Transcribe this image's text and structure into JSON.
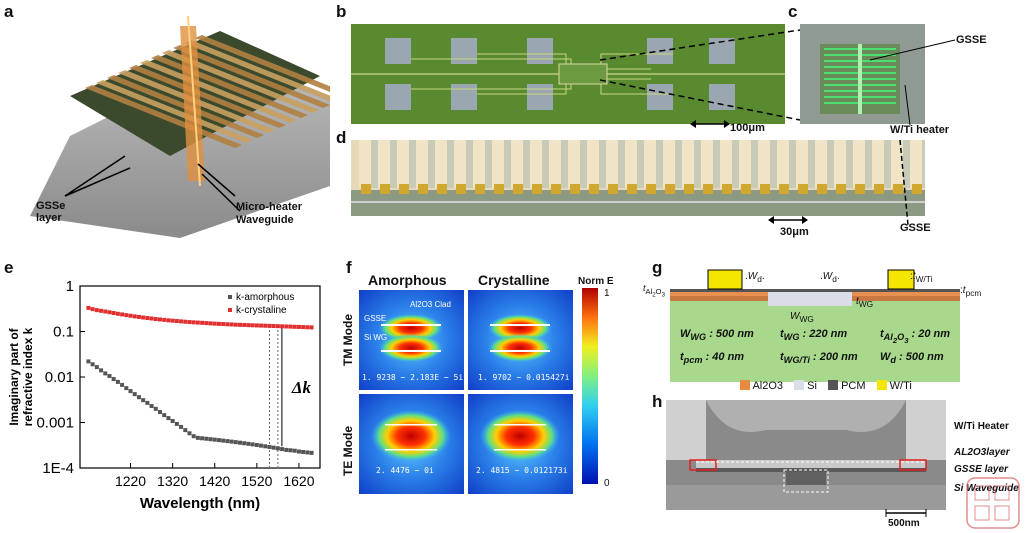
{
  "panels": {
    "a": {
      "letter": "a",
      "gsse_label": "GSSe\nlayer",
      "heater_label": "Micro-heater",
      "waveguide_label": "Waveguide"
    },
    "b": {
      "letter": "b",
      "scale": "100μm"
    },
    "c": {
      "letter": "c",
      "gsse": "GSSE",
      "heater": "W/Ti heater"
    },
    "d": {
      "letter": "d",
      "scale": "30μm",
      "gsse": "GSSE"
    },
    "e": {
      "letter": "e"
    },
    "f": {
      "letter": "f",
      "col_amorphous": "Amorphous",
      "col_crystalline": "Crystalline",
      "row_tm": "TM Mode",
      "row_te": "TE Mode",
      "clad_label": "Al2O3 Clad",
      "gsse_label": "GSSE",
      "si_label": "Si WG",
      "cb_title": "Norm E",
      "cb_max": "1",
      "cb_min": "0",
      "neff": {
        "tm_am": "1. 9238 − 2.183E − 5i",
        "tm_cr": "1. 9702 − 0.015427i",
        "te_am": "2. 4476 − 0i",
        "te_cr": "2. 4815 − 0.012173i"
      }
    },
    "g": {
      "letter": "g",
      "params": [
        [
          "W<sub>WG</sub> : 500 nm",
          "t<sub>WG</sub> : 220 nm",
          "t<sub>Al<sub>2</sub>O<sub>3</sub></sub> : 20 nm"
        ],
        [
          "t<sub>pcm</sub> : 40 nm",
          "t<sub>WG/Ti</sub> : 200 nm",
          "W<sub>d</sub> : 500 nm"
        ]
      ]
    },
    "h": {
      "letter": "h",
      "legend": [
        "Al2O3",
        "Si",
        "PCM",
        "W/Ti"
      ],
      "heater": "W/Ti Heater",
      "al2o3": "AL2O3layer",
      "gsse": "GSSE layer",
      "siwg": "Si Waveguide",
      "scale": "500nm"
    }
  },
  "chart_data": {
    "type": "scatter",
    "title": "",
    "xlabel": "Wavelength (nm)",
    "ylabel": "Imaginary part of refractive index k",
    "xlim": [
      1100,
      1670
    ],
    "ylim": [
      0.0001,
      1
    ],
    "yscale": "log",
    "xticks": [
      1220,
      1320,
      1420,
      1520,
      1620
    ],
    "yticks": [
      {
        "value": 1,
        "label": "1"
      },
      {
        "value": 0.1,
        "label": "0.1"
      },
      {
        "value": 0.01,
        "label": "0.01"
      },
      {
        "value": 0.001,
        "label": "0.001"
      },
      {
        "value": 0.0001,
        "label": "1E-4"
      }
    ],
    "legend": {
      "position": "top-right",
      "entries": [
        "k-amorphous",
        "k-crystaline"
      ]
    },
    "annotation": {
      "text": "Δk",
      "x_range": [
        1550,
        1570
      ]
    },
    "series": [
      {
        "name": "k-amorphous",
        "color": "#555555",
        "x": [
          1120,
          1130,
          1140,
          1150,
          1160,
          1170,
          1180,
          1190,
          1200,
          1210,
          1220,
          1230,
          1240,
          1250,
          1260,
          1270,
          1280,
          1290,
          1300,
          1310,
          1320,
          1330,
          1340,
          1350,
          1360,
          1370,
          1380,
          1390,
          1400,
          1410,
          1420,
          1430,
          1440,
          1450,
          1460,
          1470,
          1480,
          1490,
          1500,
          1510,
          1520,
          1530,
          1540,
          1550,
          1560,
          1570,
          1580,
          1590,
          1600,
          1610,
          1620,
          1630,
          1640,
          1650
        ],
        "y": [
          0.022,
          0.019,
          0.0165,
          0.014,
          0.012,
          0.0105,
          0.009,
          0.0078,
          0.0067,
          0.0057,
          0.0049,
          0.0042,
          0.0036,
          0.0031,
          0.0027,
          0.0023,
          0.002,
          0.0017,
          0.00145,
          0.00125,
          0.00108,
          0.00093,
          0.0008,
          0.00068,
          0.00058,
          0.0005,
          0.00046,
          0.00045,
          0.00044,
          0.00043,
          0.00042,
          0.00041,
          0.0004,
          0.00039,
          0.00038,
          0.00037,
          0.00036,
          0.00035,
          0.00034,
          0.00033,
          0.00032,
          0.00031,
          0.0003,
          0.00029,
          0.00028,
          0.00027,
          0.00026,
          0.00025,
          0.000245,
          0.00024,
          0.00023,
          0.000225,
          0.00022,
          0.000215
        ]
      },
      {
        "name": "k-crystaline",
        "color": "#e03030",
        "x": [
          1120,
          1130,
          1140,
          1150,
          1160,
          1170,
          1180,
          1190,
          1200,
          1210,
          1220,
          1230,
          1240,
          1250,
          1260,
          1270,
          1280,
          1290,
          1300,
          1310,
          1320,
          1330,
          1340,
          1350,
          1360,
          1370,
          1380,
          1390,
          1400,
          1410,
          1420,
          1430,
          1440,
          1450,
          1460,
          1470,
          1480,
          1490,
          1500,
          1510,
          1520,
          1530,
          1540,
          1550,
          1560,
          1570,
          1580,
          1590,
          1600,
          1610,
          1620,
          1630,
          1640,
          1650
        ],
        "y": [
          0.33,
          0.31,
          0.295,
          0.285,
          0.275,
          0.265,
          0.255,
          0.245,
          0.237,
          0.229,
          0.222,
          0.215,
          0.209,
          0.203,
          0.198,
          0.193,
          0.188,
          0.184,
          0.18,
          0.176,
          0.173,
          0.17,
          0.167,
          0.164,
          0.161,
          0.159,
          0.157,
          0.155,
          0.153,
          0.151,
          0.149,
          0.147,
          0.146,
          0.144,
          0.143,
          0.141,
          0.14,
          0.139,
          0.138,
          0.137,
          0.136,
          0.135,
          0.134,
          0.133,
          0.132,
          0.131,
          0.13,
          0.129,
          0.128,
          0.127,
          0.126,
          0.125,
          0.124,
          0.123
        ]
      }
    ]
  }
}
